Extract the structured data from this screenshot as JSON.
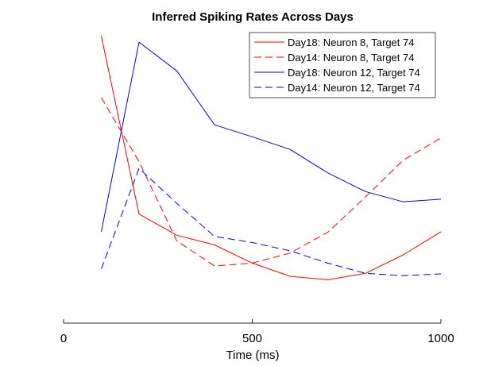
{
  "chart_data": {
    "type": "line",
    "title": "Inferred Spiking Rates Across Days",
    "xlabel": "Time (ms)",
    "ylabel": "",
    "xlim": [
      0,
      1000
    ],
    "ylim": [
      0,
      1
    ],
    "xticks": [
      0,
      500,
      1000
    ],
    "grid": false,
    "legend_position": "top-right",
    "x": [
      100,
      200,
      300,
      400,
      500,
      600,
      700,
      800,
      900,
      1000
    ],
    "series": [
      {
        "name": "Day18: Neuron 8, Target 74",
        "color": "#ff0000",
        "dash": "solid",
        "values": [
          0.98,
          0.372,
          0.3,
          0.267,
          0.205,
          0.16,
          0.148,
          0.17,
          0.233,
          0.312
        ]
      },
      {
        "name": "Day14: Neuron 8, Target 74",
        "color": "#ff0000",
        "dash": "dashed",
        "values": [
          0.77,
          0.551,
          0.281,
          0.195,
          0.205,
          0.239,
          0.31,
          0.431,
          0.556,
          0.632
        ]
      },
      {
        "name": "Day18: Neuron 12, Target 74",
        "color": "#0000ff",
        "dash": "solid",
        "values": [
          0.312,
          0.959,
          0.861,
          0.677,
          0.636,
          0.593,
          0.513,
          0.449,
          0.414,
          0.423
        ]
      },
      {
        "name": "Day14: Neuron 12, Target 74",
        "color": "#0000ff",
        "dash": "dashed",
        "values": [
          0.185,
          0.528,
          0.409,
          0.296,
          0.275,
          0.247,
          0.205,
          0.17,
          0.162,
          0.168
        ]
      }
    ]
  }
}
